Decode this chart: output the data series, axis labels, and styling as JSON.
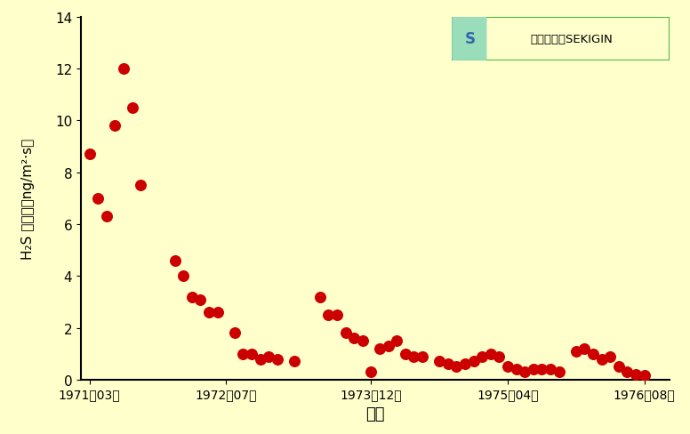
{
  "background_color": "#FFFFCC",
  "plot_bg_color": "#FFFFCC",
  "dot_color": "#CC0000",
  "dot_size": 70,
  "xlabel": "西暦",
  "ylim": [
    0,
    14
  ],
  "yticks": [
    0,
    2,
    4,
    6,
    8,
    10,
    12,
    14
  ],
  "xtick_labels": [
    "1971年03月",
    "1972年07月",
    "1973年12月",
    "1975年04月",
    "1976年08月"
  ],
  "xtick_positions": [
    0.0,
    16.0,
    33.0,
    49.0,
    65.0
  ],
  "watermark_text": "技術情報館SEKIGIN",
  "data_points": [
    [
      0.0,
      8.7
    ],
    [
      1.0,
      7.0
    ],
    [
      2.0,
      6.3
    ],
    [
      3.0,
      9.8
    ],
    [
      4.0,
      12.0
    ],
    [
      5.0,
      10.5
    ],
    [
      6.0,
      7.5
    ],
    [
      10.0,
      4.6
    ],
    [
      11.0,
      4.0
    ],
    [
      12.0,
      3.2
    ],
    [
      13.0,
      3.1
    ],
    [
      14.0,
      2.6
    ],
    [
      15.0,
      2.6
    ],
    [
      17.0,
      1.8
    ],
    [
      18.0,
      1.0
    ],
    [
      19.0,
      1.0
    ],
    [
      20.0,
      0.8
    ],
    [
      21.0,
      0.9
    ],
    [
      22.0,
      0.8
    ],
    [
      24.0,
      0.7
    ],
    [
      27.0,
      3.2
    ],
    [
      28.0,
      2.5
    ],
    [
      29.0,
      2.5
    ],
    [
      30.0,
      1.8
    ],
    [
      31.0,
      1.6
    ],
    [
      32.0,
      1.5
    ],
    [
      33.0,
      0.3
    ],
    [
      34.0,
      1.2
    ],
    [
      35.0,
      1.3
    ],
    [
      36.0,
      1.5
    ],
    [
      37.0,
      1.0
    ],
    [
      38.0,
      0.9
    ],
    [
      39.0,
      0.9
    ],
    [
      41.0,
      0.7
    ],
    [
      42.0,
      0.6
    ],
    [
      43.0,
      0.5
    ],
    [
      44.0,
      0.6
    ],
    [
      45.0,
      0.7
    ],
    [
      46.0,
      0.9
    ],
    [
      47.0,
      1.0
    ],
    [
      48.0,
      0.9
    ],
    [
      49.0,
      0.5
    ],
    [
      50.0,
      0.4
    ],
    [
      51.0,
      0.3
    ],
    [
      52.0,
      0.4
    ],
    [
      53.0,
      0.4
    ],
    [
      54.0,
      0.4
    ],
    [
      55.0,
      0.3
    ],
    [
      57.0,
      1.1
    ],
    [
      58.0,
      1.2
    ],
    [
      59.0,
      1.0
    ],
    [
      60.0,
      0.8
    ],
    [
      61.0,
      0.9
    ],
    [
      62.0,
      0.5
    ],
    [
      63.0,
      0.3
    ],
    [
      64.0,
      0.2
    ],
    [
      65.0,
      0.15
    ]
  ]
}
